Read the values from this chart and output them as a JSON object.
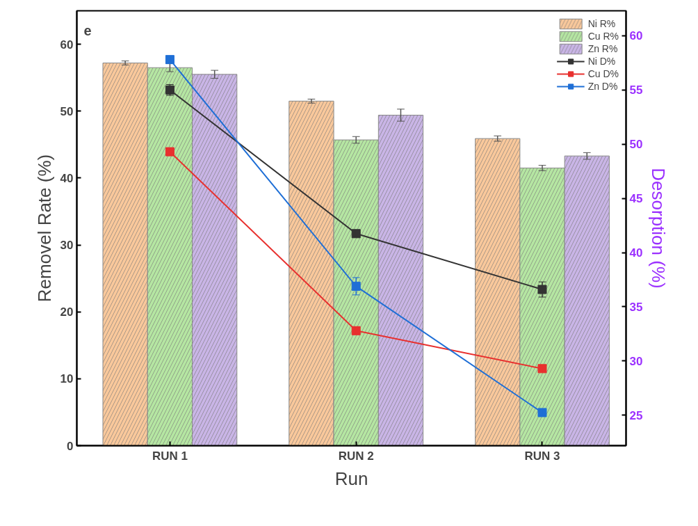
{
  "chart_data": {
    "type": "bar",
    "categories": [
      "RUN 1",
      "RUN 2",
      "RUN 3"
    ],
    "xlabel": "Run",
    "ylabel": "Removel Rate (%)",
    "y2label": "Desorption (%)",
    "annotations": [
      "e"
    ],
    "ylim": [
      0,
      65
    ],
    "yticks": [
      0,
      10,
      20,
      30,
      40,
      50,
      60
    ],
    "y2lim": [
      22.2,
      62.3
    ],
    "y2ticks": [
      25,
      30,
      35,
      40,
      45,
      50,
      55,
      60
    ],
    "grid": false,
    "legend": "top right",
    "marker": "square",
    "series": [
      {
        "name": "Ni R%",
        "color": "#f9c89b",
        "values": [
          57.2,
          51.5,
          45.9
        ],
        "errors": [
          0.3,
          0.3,
          0.4
        ]
      },
      {
        "name": "Cu R%",
        "color": "#b5e6a2",
        "values": [
          56.5,
          45.7,
          41.5
        ],
        "errors": [
          0.6,
          0.5,
          0.4
        ]
      },
      {
        "name": "Zn R%",
        "color": "#c9b5e6",
        "values": [
          55.5,
          49.4,
          43.3
        ],
        "errors": [
          0.6,
          0.9,
          0.5
        ]
      },
      {
        "name": "Ni D%",
        "type": "line",
        "axis": "y2",
        "color": "#333333",
        "values": [
          55.0,
          41.75,
          36.6
        ],
        "errors": [
          0.5,
          0.3,
          0.7
        ]
      },
      {
        "name": "Cu D%",
        "type": "line",
        "axis": "y2",
        "color": "#e8302e",
        "values": [
          49.3,
          32.8,
          29.3
        ],
        "errors": [
          0.3,
          0.3,
          0.3
        ]
      },
      {
        "name": "Zn D%",
        "type": "line",
        "axis": "y2",
        "color": "#1f6fd6",
        "values": [
          57.8,
          36.9,
          25.25
        ],
        "errors": [
          0.3,
          0.8,
          0.3
        ]
      }
    ]
  }
}
